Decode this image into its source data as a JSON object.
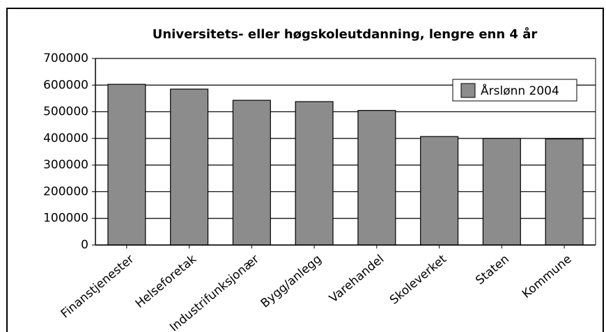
{
  "chart_data": {
    "type": "bar",
    "title": "Universitets- eller høgskoleutdanning, lengre enn 4 år",
    "categories": [
      "Finanstjenester",
      "Helseforetak",
      "Industrifunksjonær",
      "Bygg/anlegg",
      "Varehandel",
      "Skoleverket",
      "Staten",
      "Kommune"
    ],
    "series": [
      {
        "name": "Årslønn 2004",
        "color": "#8c8c8c",
        "values": [
          603000,
          585000,
          543000,
          538000,
          505000,
          407000,
          400000,
          398000
        ]
      }
    ],
    "ylim": [
      0,
      700000
    ],
    "yticks": [
      0,
      100000,
      200000,
      300000,
      400000,
      500000,
      600000,
      700000
    ],
    "grid": true,
    "legend": "upper right"
  }
}
